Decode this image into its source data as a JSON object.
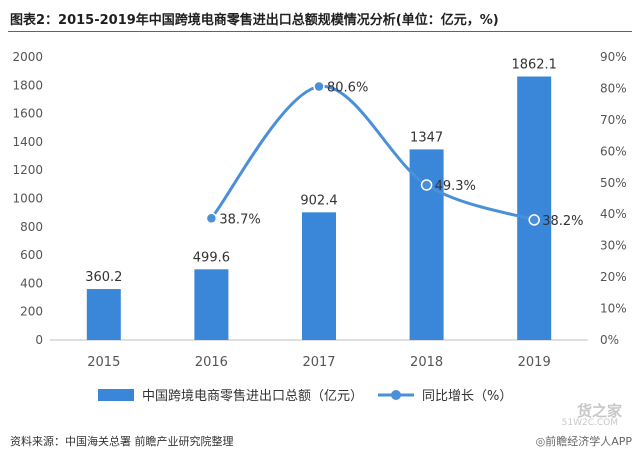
{
  "title": "图表2：2015-2019年中国跨境电商零售进出口总额规模情况分析(单位：亿元，%)",
  "source": "资料来源：中国海关总署 前瞻产业研究院整理",
  "watermark": {
    "main": "货之家",
    "sub": "51W2C.COM"
  },
  "credit": "◎前瞻经济学人APP",
  "colors": {
    "bar": "#3a86d9",
    "line": "#4a90d9",
    "title_rule": "#2f6db5",
    "grid": "#e6e6e6"
  },
  "chart_data": {
    "type": "bar",
    "categories": [
      "2015",
      "2016",
      "2017",
      "2018",
      "2019"
    ],
    "series": [
      {
        "name": "中国跨境电商零售进出口总额（亿元）",
        "type": "bar",
        "axis": "left",
        "values": [
          360.2,
          499.6,
          902.4,
          1347,
          1862.1
        ],
        "labels": [
          "360.2",
          "499.6",
          "902.4",
          "1347",
          "1862.1"
        ]
      },
      {
        "name": "同比增长（%）",
        "type": "line",
        "axis": "right",
        "x": [
          "2016",
          "2017",
          "2018",
          "2019"
        ],
        "values": [
          38.7,
          80.6,
          49.3,
          38.2
        ],
        "labels": [
          "38.7%",
          "80.6%",
          "49.3%",
          "38.2%"
        ]
      }
    ],
    "y_left": {
      "min": 0,
      "max": 2000,
      "ticks": [
        "0",
        "200",
        "400",
        "600",
        "800",
        "1000",
        "1200",
        "1400",
        "1600",
        "1800",
        "2000"
      ]
    },
    "y_right": {
      "min": 0,
      "max": 90,
      "ticks": [
        "0%",
        "10%",
        "20%",
        "30%",
        "40%",
        "50%",
        "60%",
        "70%",
        "80%",
        "90%"
      ]
    },
    "grid": false,
    "legend_position": "bottom"
  }
}
